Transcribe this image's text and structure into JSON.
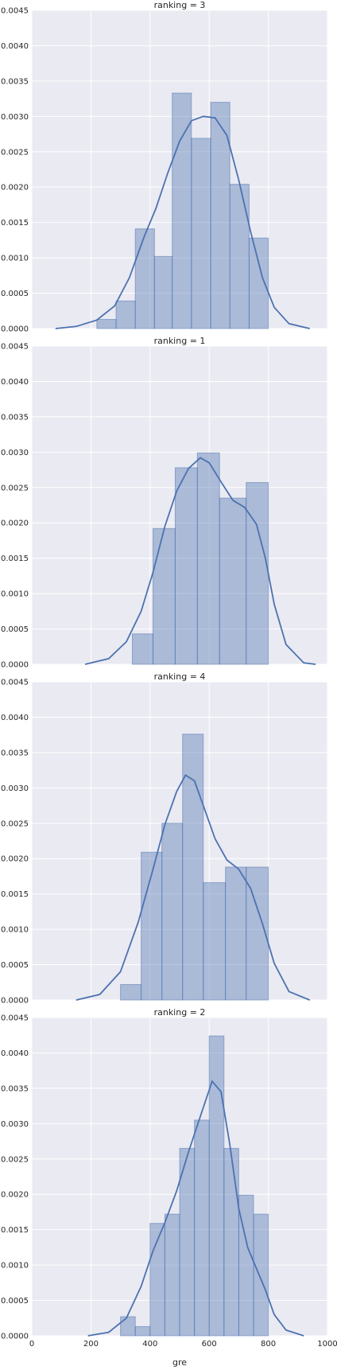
{
  "chart_data": [
    {
      "type": "bar",
      "title": "ranking = 3",
      "xlabel": "",
      "ylabel": "",
      "xlim": [
        0,
        1000
      ],
      "ylim": [
        0,
        0.0045
      ],
      "xticks": [
        "0",
        "200",
        "400",
        "600",
        "800",
        "1000"
      ],
      "yticks": [
        "0.0000",
        "0.0005",
        "0.0010",
        "0.0015",
        "0.0020",
        "0.0025",
        "0.0030",
        "0.0035",
        "0.0040",
        "0.0045"
      ],
      "grid": true,
      "bins": [
        {
          "x0": 220,
          "x1": 285,
          "value": 0.00013
        },
        {
          "x0": 285,
          "x1": 350,
          "value": 0.00039
        },
        {
          "x0": 350,
          "x1": 415,
          "value": 0.00141
        },
        {
          "x0": 415,
          "x1": 475,
          "value": 0.00102
        },
        {
          "x0": 475,
          "x1": 540,
          "value": 0.00333
        },
        {
          "x0": 540,
          "x1": 605,
          "value": 0.00269
        },
        {
          "x0": 605,
          "x1": 670,
          "value": 0.0032
        },
        {
          "x0": 670,
          "x1": 735,
          "value": 0.00204
        },
        {
          "x0": 735,
          "x1": 800,
          "value": 0.00128
        }
      ],
      "kde": [
        [
          80,
          0.0
        ],
        [
          150,
          3e-05
        ],
        [
          220,
          0.00012
        ],
        [
          280,
          0.00032
        ],
        [
          330,
          0.00072
        ],
        [
          380,
          0.0013
        ],
        [
          420,
          0.0017
        ],
        [
          460,
          0.0022
        ],
        [
          500,
          0.00265
        ],
        [
          540,
          0.00294
        ],
        [
          580,
          0.003
        ],
        [
          620,
          0.00298
        ],
        [
          660,
          0.00273
        ],
        [
          700,
          0.0021
        ],
        [
          740,
          0.00137
        ],
        [
          780,
          0.00072
        ],
        [
          820,
          0.0003
        ],
        [
          870,
          7e-05
        ],
        [
          940,
          0.0
        ]
      ]
    },
    {
      "type": "bar",
      "title": "ranking = 1",
      "xlabel": "",
      "ylabel": "",
      "xlim": [
        0,
        1000
      ],
      "ylim": [
        0,
        0.0045
      ],
      "xticks": [
        "0",
        "200",
        "400",
        "600",
        "800",
        "1000"
      ],
      "yticks": [
        "0.0000",
        "0.0005",
        "0.0010",
        "0.0015",
        "0.0020",
        "0.0025",
        "0.0030",
        "0.0035",
        "0.0040",
        "0.0045"
      ],
      "grid": true,
      "bins": [
        {
          "x0": 340,
          "x1": 410,
          "value": 0.00043
        },
        {
          "x0": 410,
          "x1": 485,
          "value": 0.00192
        },
        {
          "x0": 485,
          "x1": 560,
          "value": 0.00278
        },
        {
          "x0": 560,
          "x1": 635,
          "value": 0.00299
        },
        {
          "x0": 635,
          "x1": 725,
          "value": 0.00235
        },
        {
          "x0": 725,
          "x1": 800,
          "value": 0.00257
        }
      ],
      "kde": [
        [
          180,
          0.0
        ],
        [
          260,
          8e-05
        ],
        [
          320,
          0.00032
        ],
        [
          370,
          0.00075
        ],
        [
          410,
          0.0013
        ],
        [
          450,
          0.00195
        ],
        [
          490,
          0.00245
        ],
        [
          530,
          0.00277
        ],
        [
          570,
          0.00292
        ],
        [
          600,
          0.00285
        ],
        [
          640,
          0.00258
        ],
        [
          680,
          0.00232
        ],
        [
          720,
          0.00222
        ],
        [
          760,
          0.00198
        ],
        [
          790,
          0.0015
        ],
        [
          820,
          0.00085
        ],
        [
          860,
          0.00028
        ],
        [
          920,
          2e-05
        ],
        [
          960,
          0.0
        ]
      ]
    },
    {
      "type": "bar",
      "title": "ranking = 4",
      "xlabel": "",
      "ylabel": "",
      "xlim": [
        0,
        1000
      ],
      "ylim": [
        0,
        0.0045
      ],
      "xticks": [
        "0",
        "200",
        "400",
        "600",
        "800",
        "1000"
      ],
      "yticks": [
        "0.0000",
        "0.0005",
        "0.0010",
        "0.0015",
        "0.0020",
        "0.0025",
        "0.0030",
        "0.0035",
        "0.0040",
        "0.0045"
      ],
      "grid": true,
      "bins": [
        {
          "x0": 300,
          "x1": 370,
          "value": 0.00022
        },
        {
          "x0": 370,
          "x1": 440,
          "value": 0.00209
        },
        {
          "x0": 440,
          "x1": 510,
          "value": 0.0025
        },
        {
          "x0": 510,
          "x1": 580,
          "value": 0.00376
        },
        {
          "x0": 580,
          "x1": 655,
          "value": 0.00166
        },
        {
          "x0": 655,
          "x1": 725,
          "value": 0.00188
        },
        {
          "x0": 725,
          "x1": 800,
          "value": 0.00188
        }
      ],
      "kde": [
        [
          150,
          0.0
        ],
        [
          230,
          8e-05
        ],
        [
          300,
          0.0004
        ],
        [
          360,
          0.0011
        ],
        [
          410,
          0.00185
        ],
        [
          450,
          0.00248
        ],
        [
          490,
          0.00295
        ],
        [
          520,
          0.00318
        ],
        [
          550,
          0.0031
        ],
        [
          580,
          0.00275
        ],
        [
          620,
          0.00228
        ],
        [
          660,
          0.00198
        ],
        [
          700,
          0.00185
        ],
        [
          740,
          0.00158
        ],
        [
          780,
          0.00108
        ],
        [
          820,
          0.00052
        ],
        [
          870,
          0.00012
        ],
        [
          940,
          0.0
        ]
      ]
    },
    {
      "type": "bar",
      "title": "ranking = 2",
      "xlabel": "gre",
      "ylabel": "",
      "xlim": [
        0,
        1000
      ],
      "ylim": [
        0,
        0.0045
      ],
      "xticks": [
        "0",
        "200",
        "400",
        "600",
        "800",
        "1000"
      ],
      "yticks": [
        "0.0000",
        "0.0005",
        "0.0010",
        "0.0015",
        "0.0020",
        "0.0025",
        "0.0030",
        "0.0035",
        "0.0040",
        "0.0045"
      ],
      "grid": true,
      "bins": [
        {
          "x0": 300,
          "x1": 350,
          "value": 0.00027
        },
        {
          "x0": 350,
          "x1": 400,
          "value": 0.00013
        },
        {
          "x0": 400,
          "x1": 450,
          "value": 0.00159
        },
        {
          "x0": 450,
          "x1": 500,
          "value": 0.00172
        },
        {
          "x0": 500,
          "x1": 550,
          "value": 0.00265
        },
        {
          "x0": 550,
          "x1": 600,
          "value": 0.00305
        },
        {
          "x0": 600,
          "x1": 650,
          "value": 0.00424
        },
        {
          "x0": 650,
          "x1": 700,
          "value": 0.00265
        },
        {
          "x0": 700,
          "x1": 750,
          "value": 0.00199
        },
        {
          "x0": 750,
          "x1": 800,
          "value": 0.00172
        }
      ],
      "kde": [
        [
          190,
          0.0
        ],
        [
          260,
          5e-05
        ],
        [
          320,
          0.00025
        ],
        [
          370,
          0.0007
        ],
        [
          410,
          0.0012
        ],
        [
          450,
          0.0016
        ],
        [
          490,
          0.00205
        ],
        [
          530,
          0.0026
        ],
        [
          570,
          0.0031
        ],
        [
          610,
          0.0036
        ],
        [
          640,
          0.00345
        ],
        [
          670,
          0.0027
        ],
        [
          700,
          0.0018
        ],
        [
          730,
          0.00125
        ],
        [
          760,
          0.00095
        ],
        [
          790,
          0.00065
        ],
        [
          820,
          0.0003
        ],
        [
          860,
          8e-05
        ],
        [
          920,
          0.0
        ]
      ]
    }
  ]
}
